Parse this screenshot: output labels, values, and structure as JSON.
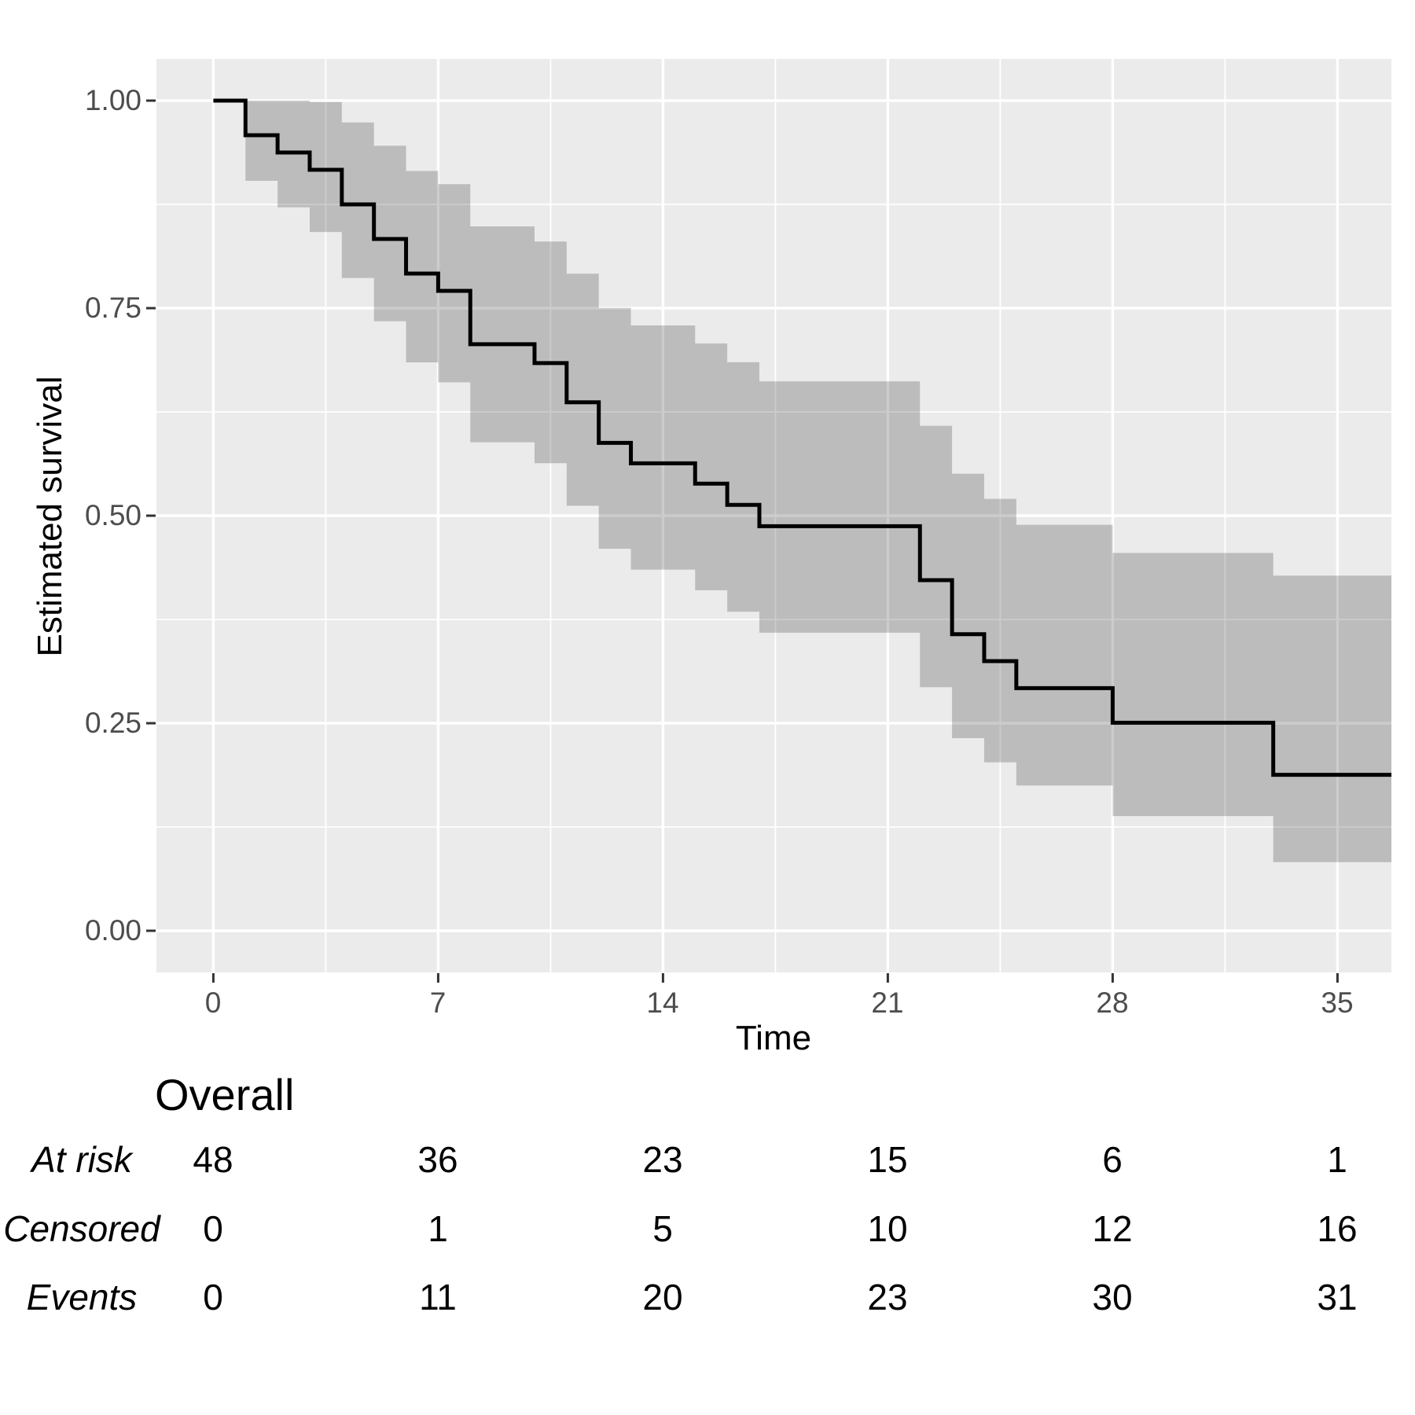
{
  "chart_data": {
    "type": "line",
    "subtype": "kaplan-meier-step",
    "title": "",
    "xlabel": "Time",
    "ylabel": "Estimated survival",
    "xlim": [
      -1.76,
      36.69
    ],
    "ylim": [
      -0.05,
      1.05
    ],
    "grid": true,
    "legend": false,
    "x_ticks": [
      0,
      7,
      14,
      21,
      28,
      35
    ],
    "x_tick_labels": [
      "0",
      "7",
      "14",
      "21",
      "28",
      "35"
    ],
    "x_minor_ticks": [
      3.5,
      10.5,
      17.5,
      24.5,
      31.5
    ],
    "y_ticks": [
      1.0,
      0.75,
      0.5,
      0.25,
      0.0
    ],
    "y_tick_labels": [
      "1.00",
      "0.75",
      "0.50",
      "0.25",
      "0.00"
    ],
    "y_minor_ticks": [
      0.875,
      0.625,
      0.375,
      0.125
    ],
    "curve_end_time": 36.69,
    "series": [
      {
        "name": "Overall",
        "steps": [
          {
            "t": 0,
            "s": 1.0,
            "lb": null,
            "ub": null
          },
          {
            "t": 1,
            "s": 0.9583,
            "lb": 0.9034,
            "ub": 1.0
          },
          {
            "t": 2,
            "s": 0.9375,
            "lb": 0.8715,
            "ub": 1.0
          },
          {
            "t": 3,
            "s": 0.9167,
            "lb": 0.8417,
            "ub": 0.9983
          },
          {
            "t": 4,
            "s": 0.875,
            "lb": 0.7863,
            "ub": 0.9737
          },
          {
            "t": 5,
            "s": 0.8333,
            "lb": 0.7343,
            "ub": 0.9457
          },
          {
            "t": 6,
            "s": 0.7917,
            "lb": 0.6847,
            "ub": 0.9153
          },
          {
            "t": 7,
            "s": 0.7708,
            "lb": 0.6606,
            "ub": 0.8994
          },
          {
            "t": 8,
            "s": 0.7066,
            "lb": 0.5884,
            "ub": 0.8485
          },
          {
            "t": 10,
            "s": 0.6838,
            "lb": 0.5632,
            "ub": 0.8302
          },
          {
            "t": 11,
            "s": 0.6366,
            "lb": 0.512,
            "ub": 0.7916
          },
          {
            "t": 12,
            "s": 0.5877,
            "lb": 0.4602,
            "ub": 0.7504
          },
          {
            "t": 13,
            "s": 0.5631,
            "lb": 0.435,
            "ub": 0.7292
          },
          {
            "t": 15,
            "s": 0.5386,
            "lb": 0.4102,
            "ub": 0.7075
          },
          {
            "t": 16,
            "s": 0.513,
            "lb": 0.3843,
            "ub": 0.6849
          },
          {
            "t": 17,
            "s": 0.4873,
            "lb": 0.359,
            "ub": 0.6618
          },
          {
            "t": 22,
            "s": 0.4223,
            "lb": 0.2933,
            "ub": 0.6083
          },
          {
            "t": 23,
            "s": 0.3573,
            "lb": 0.232,
            "ub": 0.5506
          },
          {
            "t": 24,
            "s": 0.3248,
            "lb": 0.2029,
            "ub": 0.5203
          },
          {
            "t": 25,
            "s": 0.2923,
            "lb": 0.1749,
            "ub": 0.489
          },
          {
            "t": 28,
            "s": 0.2506,
            "lb": 0.1381,
            "ub": 0.4551
          },
          {
            "t": 33,
            "s": 0.1879,
            "lb": 0.0826,
            "ub": 0.4278
          }
        ]
      }
    ],
    "colors": {
      "panel_background": "#ebebeb",
      "gridline": "#ffffff",
      "survival_curve": "#000000",
      "confidence_band": "rgba(0,0,0,0.20)",
      "tick_label": "#4d4d4d",
      "tick_mark": "#333333"
    }
  },
  "risk_table": {
    "header": "Overall",
    "times": [
      0,
      7,
      14,
      21,
      28,
      35
    ],
    "rows": [
      {
        "label": "At risk",
        "values": [
          "48",
          "36",
          "23",
          "15",
          "6",
          "1"
        ]
      },
      {
        "label": "Censored",
        "values": [
          "0",
          "1",
          "5",
          "10",
          "12",
          "16"
        ]
      },
      {
        "label": "Events",
        "values": [
          "0",
          "11",
          "20",
          "23",
          "30",
          "31"
        ]
      }
    ]
  }
}
